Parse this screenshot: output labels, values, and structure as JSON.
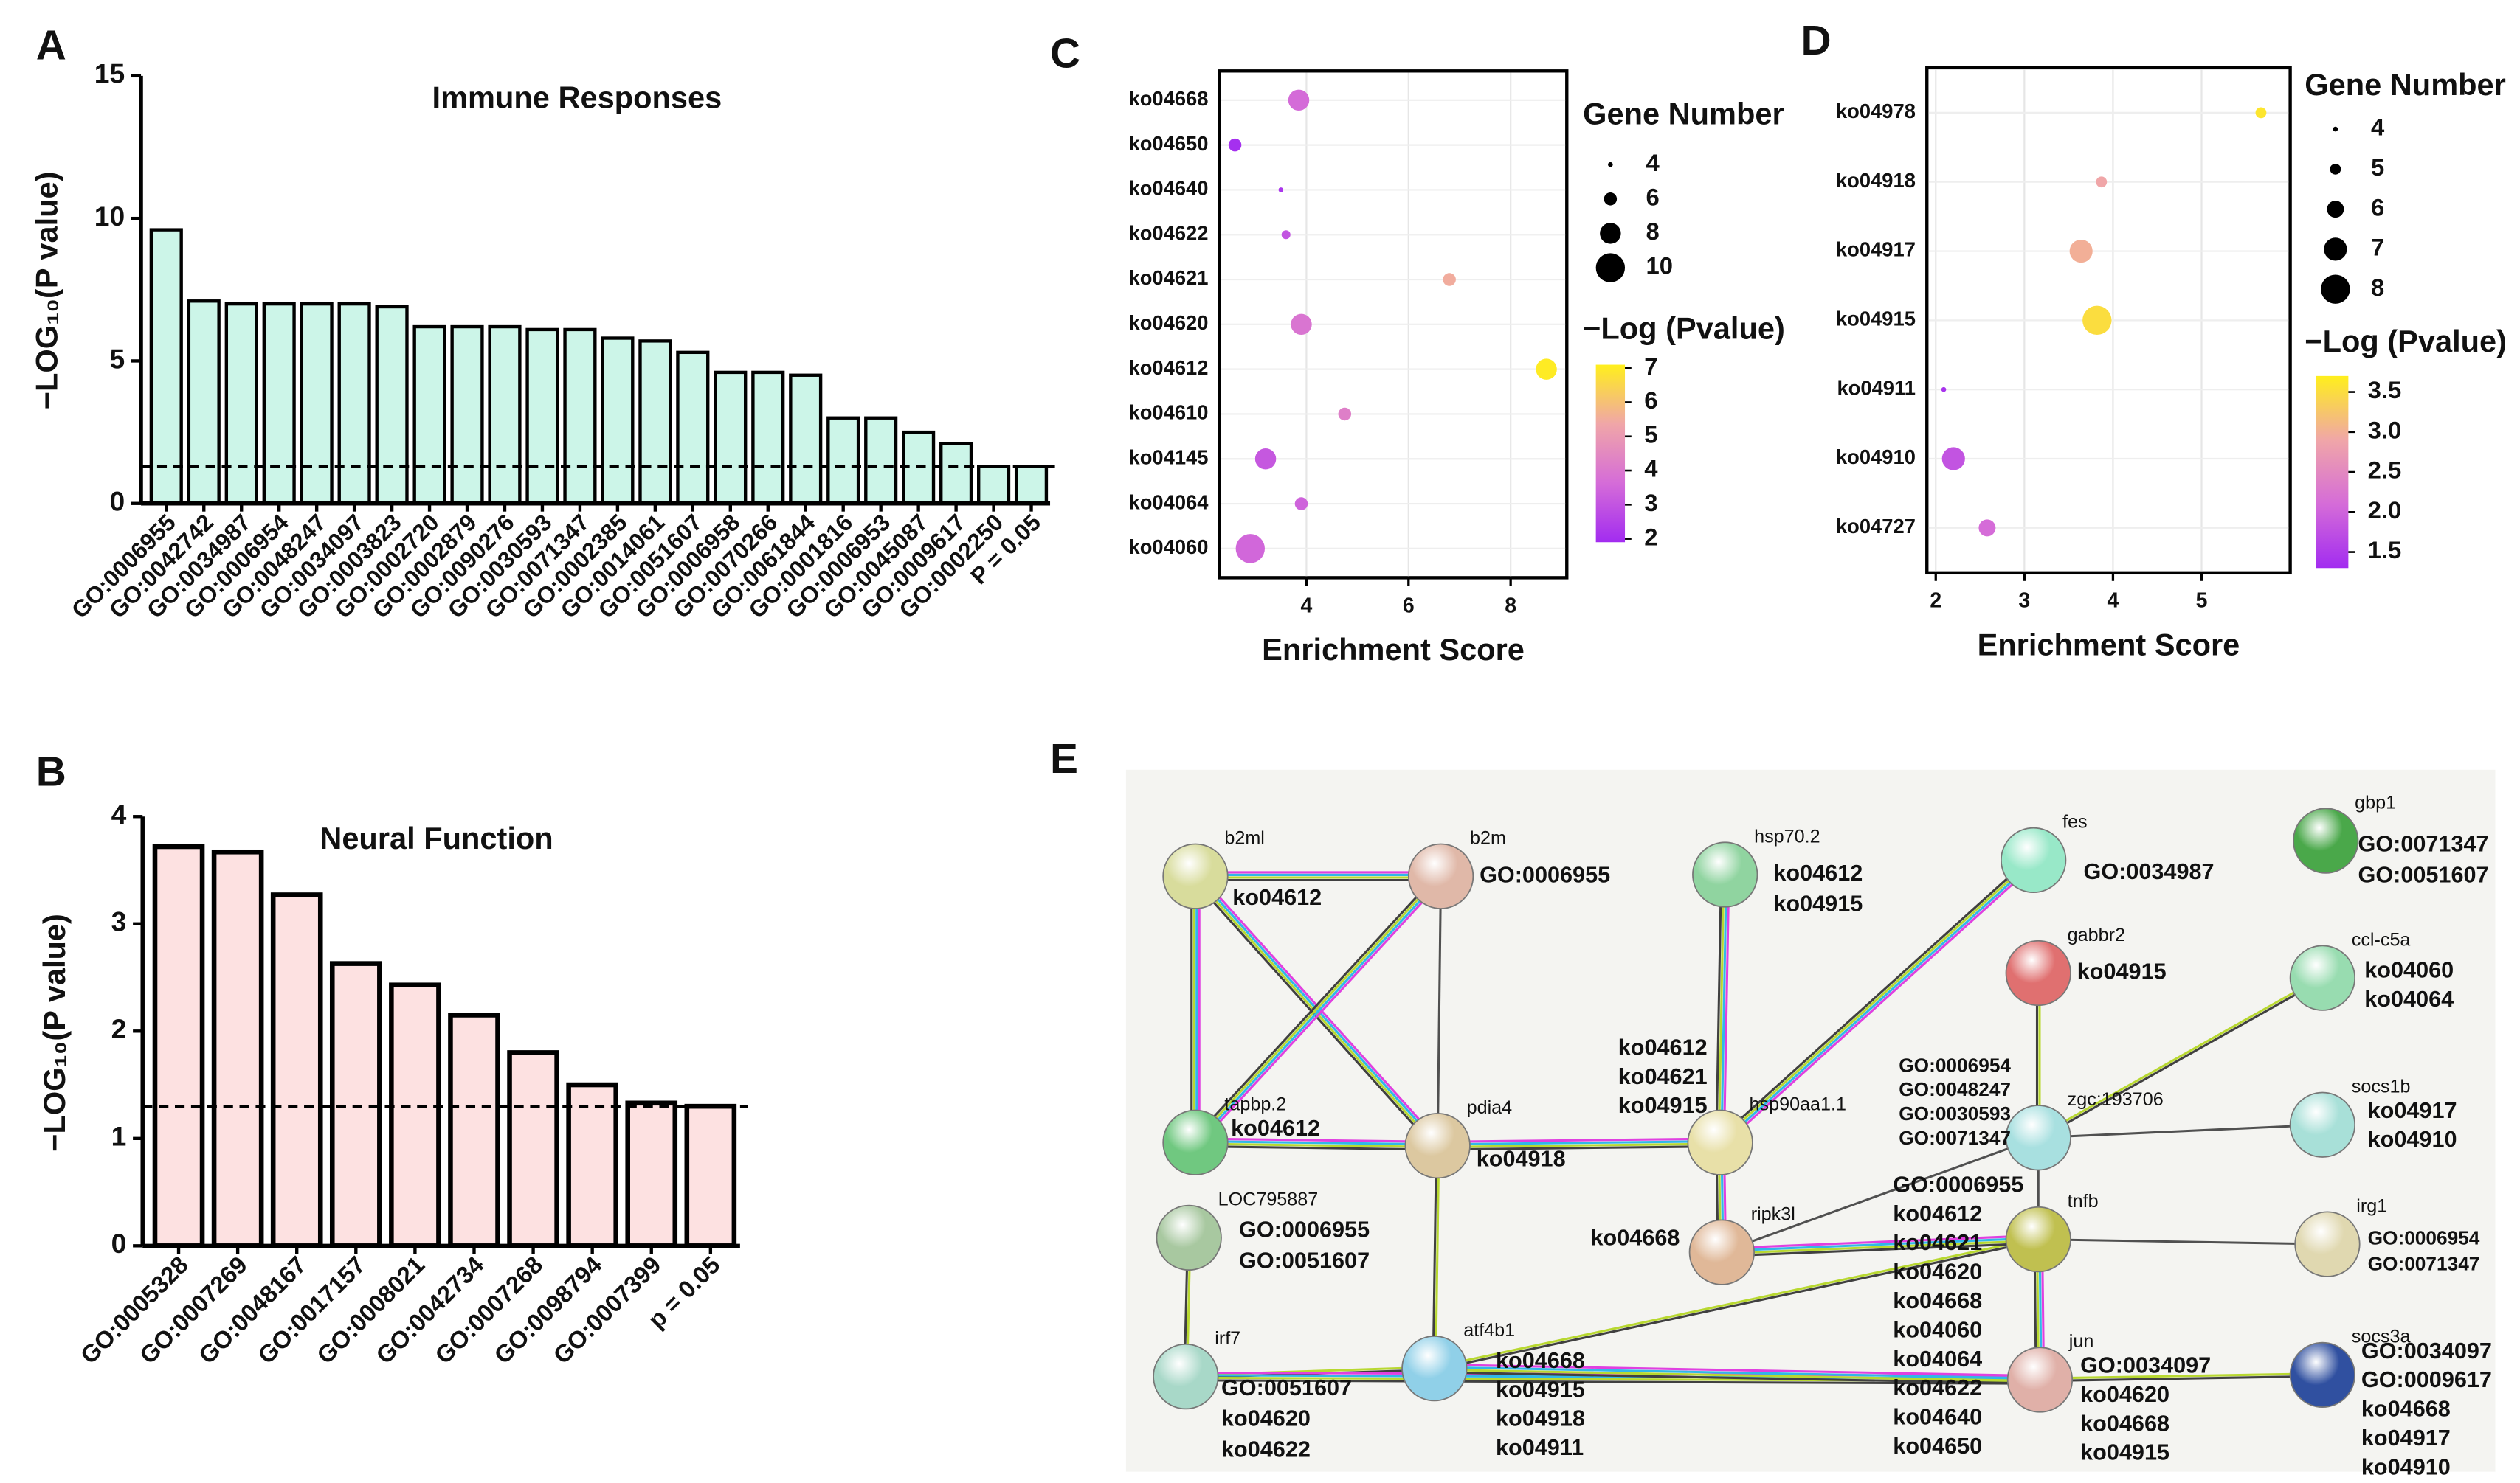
{
  "chart_data": [
    {
      "type": "bar",
      "panel": "A",
      "title": "Immune Responses",
      "ylabel": "−LOG₁₀(P value)",
      "categories": [
        "GO:0006955",
        "GO:0042742",
        "GO:0034987",
        "GO:0006954",
        "GO:0048247",
        "GO:0034097",
        "GO:0003823",
        "GO:0002720",
        "GO:0002879",
        "GO:0090276",
        "GO:0030593",
        "GO:0071347",
        "GO:0002385",
        "GO:0014061",
        "GO:0051607",
        "GO:0006958",
        "GO:0070266",
        "GO:0061844",
        "GO:0001816",
        "GO:0006953",
        "GO:0045087",
        "GO:0009617",
        "GO:0002250",
        "P = 0.05"
      ],
      "values": [
        9.6,
        7.1,
        7.0,
        7.0,
        7.0,
        7.0,
        6.9,
        6.2,
        6.2,
        6.2,
        6.1,
        6.1,
        5.8,
        5.7,
        5.3,
        4.6,
        4.6,
        4.5,
        3.0,
        3.0,
        2.5,
        2.1,
        1.3,
        1.3
      ],
      "color": "#ccf5e8",
      "threshold": 1.3,
      "ylim": [
        0,
        15
      ],
      "yticks": [
        0,
        5,
        10,
        15
      ]
    },
    {
      "type": "bar",
      "panel": "B",
      "title": "Neural Function",
      "ylabel": "−LOG₁₀(P value)",
      "categories": [
        "GO:0005328",
        "GO:0007269",
        "GO:0048167",
        "GO:0017157",
        "GO:0008021",
        "GO:0042734",
        "GO:0007268",
        "GO:0098794",
        "GO:0007399",
        "p = 0.05"
      ],
      "values": [
        3.72,
        3.67,
        3.27,
        2.63,
        2.43,
        2.15,
        1.8,
        1.5,
        1.33,
        1.3
      ],
      "color": "#fde1e1",
      "threshold": 1.3,
      "ylim": [
        0,
        4
      ],
      "yticks": [
        0,
        1,
        2,
        3,
        4
      ]
    },
    {
      "type": "bubble",
      "panel": "C",
      "xlabel": "Enrichment Score",
      "categories": [
        "ko04668",
        "ko04650",
        "ko04640",
        "ko04622",
        "ko04621",
        "ko04620",
        "ko04612",
        "ko04610",
        "ko04145",
        "ko04064",
        "ko04060"
      ],
      "values": [
        3.85,
        2.6,
        3.5,
        3.6,
        6.8,
        3.9,
        8.7,
        4.75,
        3.2,
        3.9,
        2.9
      ],
      "sizes": [
        8,
        6,
        4,
        5,
        6,
        8,
        8,
        6,
        8,
        6,
        10
      ],
      "pvalues": [
        3.6,
        2.0,
        2.2,
        3.0,
        5.5,
        3.9,
        7.0,
        4.2,
        3.1,
        3.4,
        3.5
      ],
      "xlim": [
        2.3,
        9.1
      ],
      "xticks": [
        4,
        6,
        8
      ],
      "size_title": "Gene Number",
      "size_legend": [
        4,
        6,
        8,
        10
      ],
      "color_title": "−Log (Pvalue)",
      "clim": [
        1.9,
        7.1
      ],
      "cticks": [
        2,
        3,
        4,
        5,
        6,
        7
      ],
      "colorscale": [
        "#a22cf0",
        "#d56cd8",
        "#f0a6a8",
        "#ffef1c"
      ]
    },
    {
      "type": "bubble",
      "panel": "D",
      "xlabel": "Enrichment Score",
      "categories": [
        "ko04978",
        "ko04918",
        "ko04917",
        "ko04915",
        "ko04911",
        "ko04910",
        "ko04727"
      ],
      "values": [
        5.67,
        3.87,
        3.64,
        3.82,
        2.09,
        2.2,
        2.58
      ],
      "sizes": [
        5,
        5,
        7,
        8,
        4,
        7,
        6
      ],
      "pvalues": [
        3.6,
        2.9,
        3.0,
        3.5,
        1.4,
        1.8,
        2.1
      ],
      "xlim": [
        1.9,
        6.0
      ],
      "xticks": [
        2,
        3,
        4,
        5
      ],
      "size_title": "Gene Number",
      "size_legend": [
        4,
        5,
        6,
        7,
        8
      ],
      "color_title": "−Log (Pvalue)",
      "clim": [
        1.3,
        3.7
      ],
      "cticks": [
        1.5,
        {
          "value": 2,
          "label": "2.0"
        },
        2.5,
        {
          "value": 3,
          "label": "3.0"
        },
        3.5
      ],
      "colorscale": [
        "#a22cf0",
        "#d56cd8",
        "#f0a6a8",
        "#ffef1c"
      ]
    }
  ],
  "network": {
    "panel": "E",
    "nodes": [
      {
        "label": "b2ml",
        "color": "#d8dc9c",
        "annotations": [
          "ko04612"
        ]
      },
      {
        "label": "b2m",
        "color": "#e0b8a8",
        "annotations": [
          "GO:0006955"
        ]
      },
      {
        "label": "hsp70.2",
        "color": "#90d4a0",
        "annotations": [
          "ko04612",
          "ko04915"
        ]
      },
      {
        "label": "fes",
        "color": "#98e8c8",
        "annotations": [
          "GO:0034987"
        ]
      },
      {
        "label": "gbp1",
        "color": "#4aa84a",
        "annotations": [
          "GO:0071347",
          "GO:0051607"
        ]
      },
      {
        "label": "gabbr2",
        "color": "#e07070",
        "annotations": [
          "ko04915"
        ]
      },
      {
        "label": "ccl-c5a",
        "color": "#98dcb0",
        "annotations": [
          "ko04060",
          "ko04064"
        ]
      },
      {
        "label": "tapbp.2",
        "color": "#70c880",
        "annotations": [
          "ko04612"
        ]
      },
      {
        "label": "pdia4",
        "color": "#dcc8a0",
        "annotations": [
          "ko04918"
        ]
      },
      {
        "label": "hsp90aa1.1",
        "color": "#e8e0a8",
        "annotations": [
          "ko04612",
          "ko04621",
          "ko04915"
        ]
      },
      {
        "label": "zgc:193706",
        "color": "#a8e0e0",
        "annotations": [
          "GO:0006954",
          "GO:0048247",
          "GO:0030593",
          "GO:0071347"
        ]
      },
      {
        "label": "socs1b",
        "color": "#a8e0d8",
        "annotations": [
          "ko04917",
          "ko04910"
        ]
      },
      {
        "label": "LOC795887",
        "color": "#a8c8a0",
        "annotations": [
          "GO:0006955",
          "GO:0051607"
        ]
      },
      {
        "label": "ripk3l",
        "color": "#e0b898",
        "annotations": [
          "ko04668"
        ]
      },
      {
        "label": "tnfb",
        "color": "#c0c050",
        "annotations": [
          "GO:0006955",
          "ko04612",
          "ko04621",
          "ko04620",
          "ko04668",
          "ko04060",
          "ko04064",
          "ko04622",
          "ko04640",
          "ko04650"
        ]
      },
      {
        "label": "irg1",
        "color": "#e0d8b0",
        "annotations": [
          "GO:0006954",
          "GO:0071347"
        ]
      },
      {
        "label": "irf7",
        "color": "#a8d8c8",
        "annotations": [
          "GO:0051607",
          "ko04620",
          "ko04622"
        ]
      },
      {
        "label": "atf4b1",
        "color": "#90d0e8",
        "annotations": [
          "ko04668",
          "ko04915",
          "ko04918",
          "ko04911"
        ]
      },
      {
        "label": "jun",
        "color": "#e0b0a8",
        "annotations": [
          "GO:0034097",
          "ko04620",
          "ko04668",
          "ko04915"
        ]
      },
      {
        "label": "socs3a",
        "color": "#3050a0",
        "annotations": [
          "GO:0034097",
          "GO:0009617",
          "ko04668",
          "ko04917",
          "ko04910"
        ]
      }
    ]
  }
}
